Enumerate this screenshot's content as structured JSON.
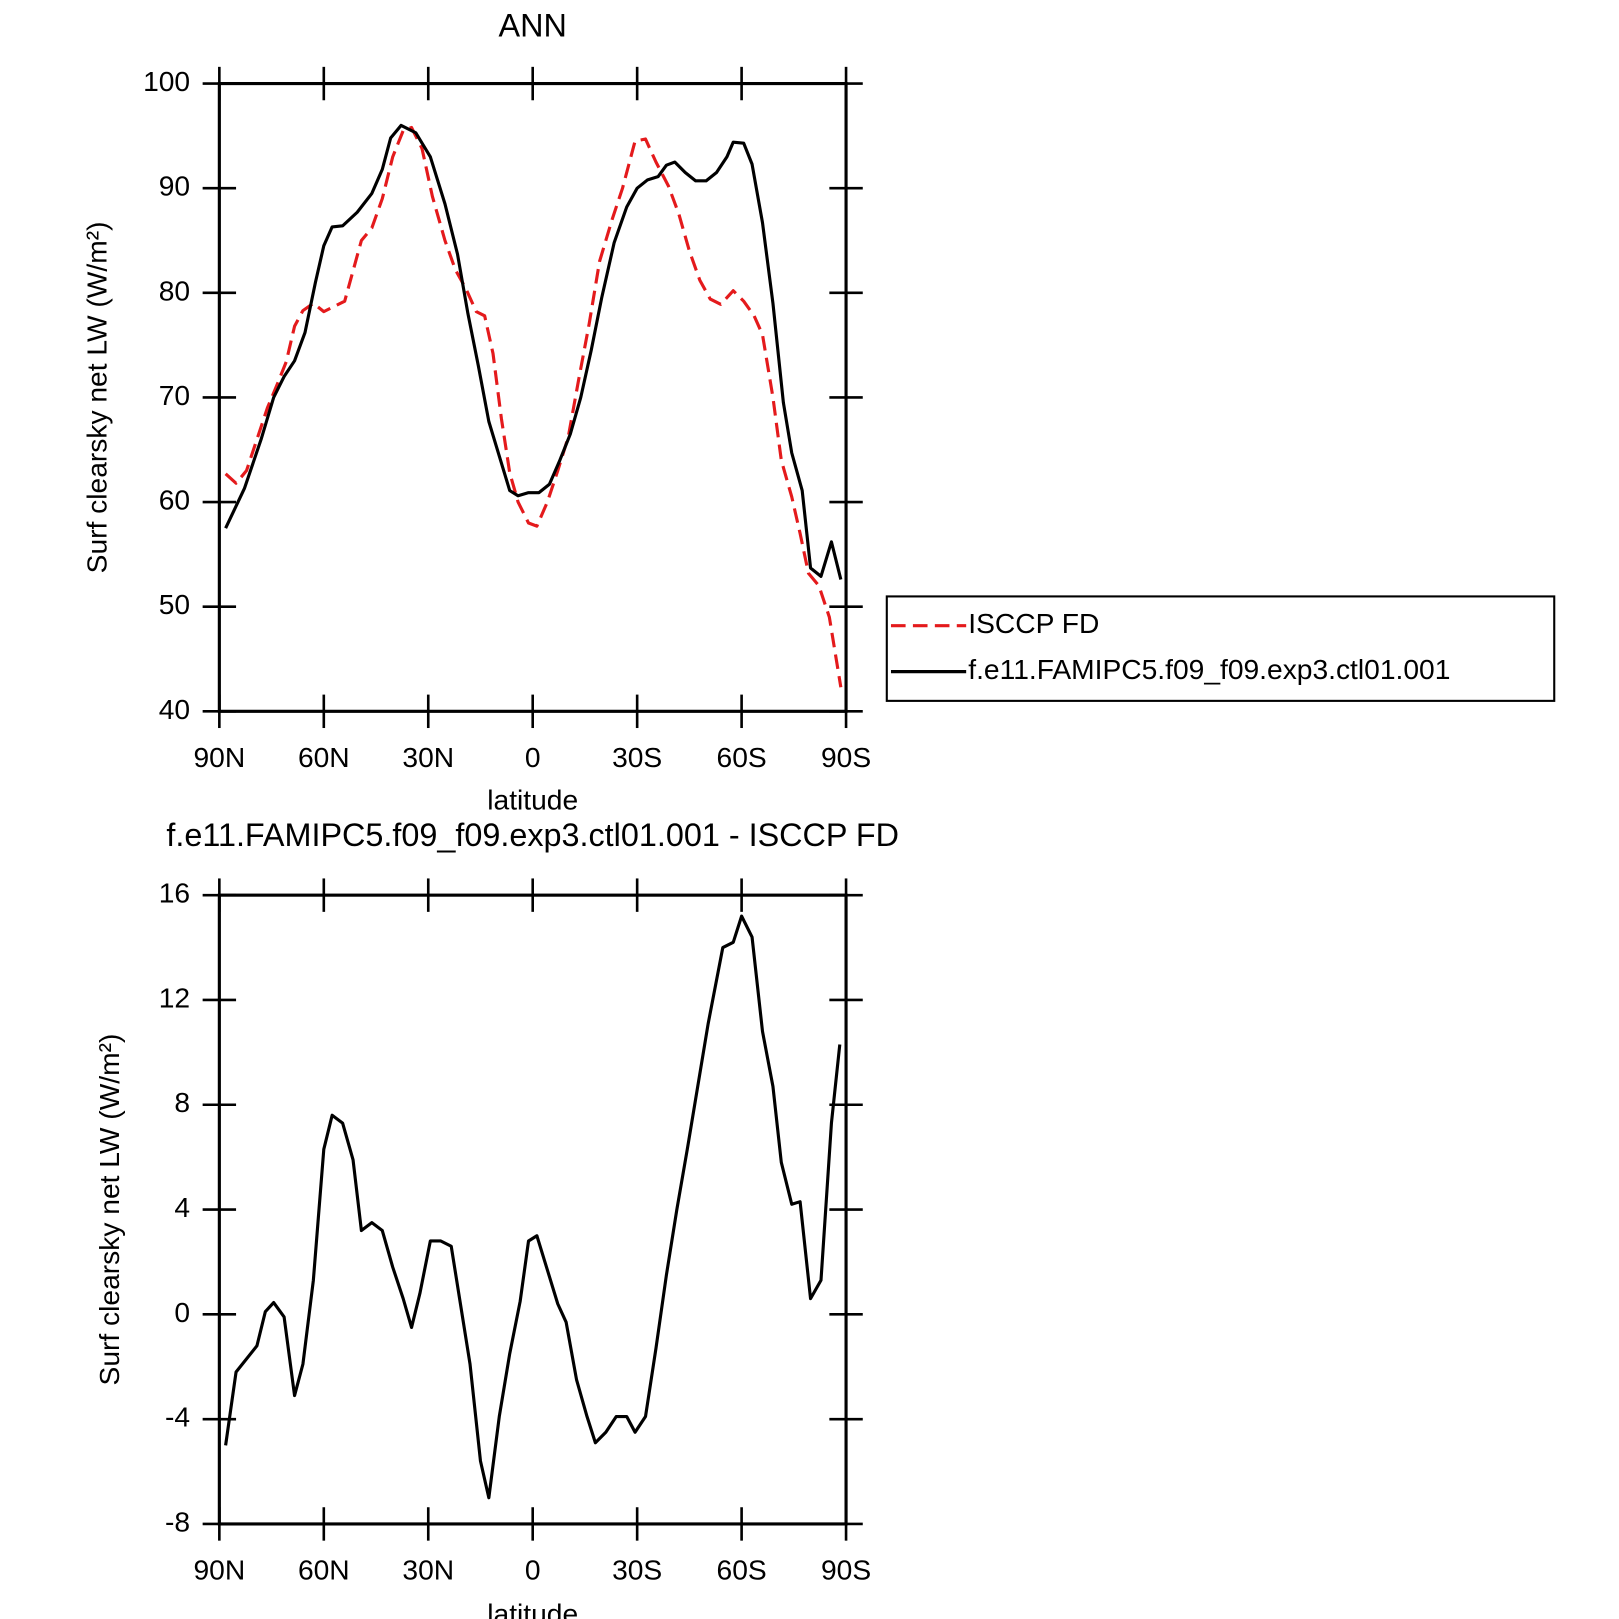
{
  "chart_data": [
    {
      "type": "line",
      "title": "ANN",
      "xlabel": "latitude",
      "ylabel": "Surf clearsky net LW (W/m²)",
      "xlim": [
        90,
        -90
      ],
      "xticks": [
        {
          "value": 90,
          "label": "90N"
        },
        {
          "value": 60,
          "label": "60N"
        },
        {
          "value": 30,
          "label": "30N"
        },
        0,
        {
          "value": -30,
          "label": "30S"
        },
        {
          "value": -60,
          "label": "60S"
        },
        {
          "value": -90,
          "label": "90S"
        }
      ],
      "ylim": [
        40,
        100
      ],
      "yticks": [
        40,
        50,
        60,
        70,
        80,
        90,
        100
      ],
      "legend": "right",
      "series": [
        {
          "name": "ISCCP FD",
          "color": "#e41a1c",
          "linestyle": "dashed",
          "x": [
            88.2,
            85.2,
            82.2,
            79.2,
            76.2,
            73.2,
            70.8,
            68.4,
            66,
            63,
            60,
            57,
            54,
            49.2,
            46.2,
            43.2,
            40.2,
            37.2,
            34.8,
            31.8,
            28.8,
            25.2,
            22.2,
            19.2,
            16.2,
            13.8,
            11.4,
            9,
            6.6,
            4.2,
            1.2,
            -1.2,
            -4.2,
            -7.2,
            -10.2,
            -13.2,
            -16.2,
            -19.2,
            -22.8,
            -25.8,
            -29.4,
            -32.4,
            -35.4,
            -39,
            -42,
            -45,
            -48,
            -51,
            -54,
            -57.6,
            -60.6,
            -63.6,
            -66,
            -69,
            -71.4,
            -74.4,
            -76.8,
            -79.2,
            -82.2,
            -85.2,
            -88.5
          ],
          "values": [
            62.7,
            61.8,
            63,
            66,
            69,
            71.4,
            73.4,
            76.8,
            78.3,
            79,
            78.2,
            78.7,
            79.2,
            85,
            86.2,
            89,
            93,
            95.5,
            95.8,
            93.8,
            89.2,
            85,
            82.2,
            80.4,
            78.2,
            77.8,
            74.2,
            68,
            62.8,
            60,
            58,
            57.7,
            60,
            63,
            66.2,
            71.7,
            77,
            83,
            87,
            90,
            94.5,
            94.7,
            92.5,
            90.2,
            87.5,
            84,
            81.2,
            79.4,
            78.9,
            80.2,
            79.2,
            77.8,
            76,
            70,
            64,
            60.5,
            57,
            53.2,
            52,
            49,
            42.3
          ]
        },
        {
          "name": "f.e11.FAMIPC5.f09_f09.exp3.ctl01.001",
          "color": "#000000",
          "linestyle": "solid",
          "x": [
            88.2,
            82.8,
            78,
            74.4,
            71.4,
            68.4,
            65.4,
            62.4,
            60,
            57.6,
            54.6,
            50.4,
            46.2,
            43.2,
            40.8,
            37.8,
            33.6,
            29.4,
            25.2,
            21.6,
            18.6,
            15.6,
            12.6,
            9.6,
            6.6,
            4.2,
            1.2,
            -1.8,
            -4.8,
            -7.8,
            -10.8,
            -13.8,
            -16.8,
            -19.8,
            -23.4,
            -27,
            -30,
            -33,
            -36,
            -38.4,
            -40.8,
            -43.8,
            -46.8,
            -49.8,
            -52.8,
            -55.8,
            -57.6,
            -60.6,
            -63,
            -66,
            -69,
            -72,
            -74.4,
            -77.4,
            -79.8,
            -82.8,
            -85.8,
            -88.5
          ],
          "values": [
            57.5,
            61.3,
            66,
            70,
            72,
            73.5,
            76.2,
            81,
            84.5,
            86.3,
            86.4,
            87.7,
            89.5,
            91.8,
            94.8,
            96,
            95.3,
            93,
            88.5,
            83.7,
            78,
            73,
            67.7,
            64.4,
            61.1,
            60.6,
            60.9,
            60.9,
            61.7,
            64,
            66.5,
            70,
            74.5,
            79.5,
            84.8,
            88.2,
            90,
            90.8,
            91.1,
            92.2,
            92.5,
            91.5,
            90.7,
            90.7,
            91.5,
            93,
            94.4,
            94.3,
            92.3,
            86.7,
            79,
            69.5,
            64.7,
            61.1,
            53.7,
            52.9,
            56.2,
            52.6
          ]
        }
      ]
    },
    {
      "type": "line",
      "title": "f.e11.FAMIPC5.f09_f09.exp3.ctl01.001 - ISCCP FD",
      "xlabel": "latitude",
      "ylabel": "Surf clearsky net LW (W/m²)",
      "xlim": [
        90,
        -90
      ],
      "xticks": [
        {
          "value": 90,
          "label": "90N"
        },
        {
          "value": 60,
          "label": "60N"
        },
        {
          "value": 30,
          "label": "30N"
        },
        0,
        {
          "value": -30,
          "label": "30S"
        },
        {
          "value": -60,
          "label": "60S"
        },
        {
          "value": -90,
          "label": "90S"
        }
      ],
      "ylim": [
        -8,
        16
      ],
      "yticks": [
        -8,
        -4,
        0,
        4,
        8,
        12,
        16
      ],
      "series": [
        {
          "color": "#000000",
          "linestyle": "solid",
          "x": [
            88.2,
            85.2,
            79.2,
            76.8,
            74.4,
            71.4,
            68.4,
            66,
            63,
            60,
            57.6,
            54.6,
            51.6,
            49.2,
            46.2,
            43.2,
            40.2,
            37.2,
            34.8,
            32.4,
            29.4,
            26.4,
            23.4,
            21,
            18,
            15,
            12.6,
            9.6,
            6.6,
            3.6,
            1.2,
            -1.2,
            -4.2,
            -7.2,
            -9.6,
            -12.6,
            -15.6,
            -18,
            -21,
            -24,
            -27,
            -29.4,
            -32.4,
            -35.4,
            -38.4,
            -41.4,
            -44.4,
            -47.4,
            -50.4,
            -54.6,
            -57.6,
            -60,
            -63,
            -66,
            -69,
            -71.4,
            -74.4,
            -76.8,
            -79.8,
            -82.8,
            -85.8,
            -88.2
          ],
          "values": [
            -5,
            -2.2,
            -1.2,
            0.1,
            0.45,
            -0.1,
            -3.1,
            -1.9,
            1.3,
            6.3,
            7.6,
            7.3,
            5.9,
            3.2,
            3.5,
            3.2,
            1.8,
            0.6,
            -0.5,
            0.8,
            2.8,
            2.8,
            2.6,
            0.6,
            -1.9,
            -5.6,
            -7,
            -3.9,
            -1.5,
            0.5,
            2.8,
            3,
            1.7,
            0.4,
            -0.3,
            -2.5,
            -3.9,
            -4.9,
            -4.5,
            -3.9,
            -3.9,
            -4.5,
            -3.9,
            -1.3,
            1.5,
            4,
            6.3,
            8.7,
            11.1,
            14,
            14.2,
            15.2,
            14.4,
            10.8,
            8.7,
            5.8,
            4.2,
            4.3,
            0.6,
            1.3,
            7.3,
            10.3
          ]
        }
      ]
    }
  ]
}
